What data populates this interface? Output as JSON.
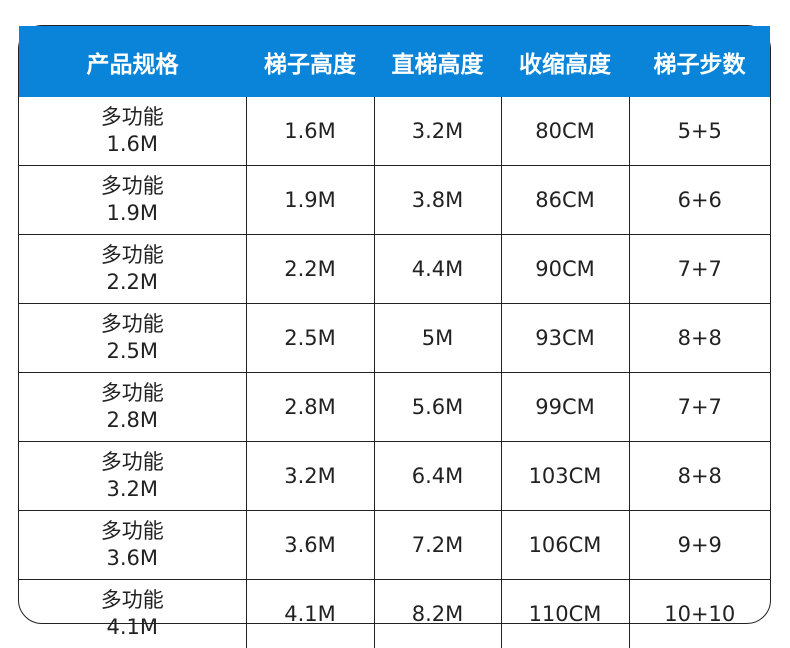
{
  "header_color": "#0a84d8",
  "headers": [
    "产品规格",
    "梯子高度",
    "直梯高度",
    "收缩高度",
    "梯子步数"
  ],
  "rows": [
    {
      "name": "多功能",
      "size": "1.6M",
      "ladder": "1.6M",
      "straight": "3.2M",
      "retracted": "80CM",
      "steps": "5+5"
    },
    {
      "name": "多功能",
      "size": "1.9M",
      "ladder": "1.9M",
      "straight": "3.8M",
      "retracted": "86CM",
      "steps": "6+6"
    },
    {
      "name": "多功能",
      "size": "2.2M",
      "ladder": "2.2M",
      "straight": "4.4M",
      "retracted": "90CM",
      "steps": "7+7"
    },
    {
      "name": "多功能",
      "size": "2.5M",
      "ladder": "2.5M",
      "straight": "5M",
      "retracted": "93CM",
      "steps": "8+8"
    },
    {
      "name": "多功能",
      "size": "2.8M",
      "ladder": "2.8M",
      "straight": "5.6M",
      "retracted": "99CM",
      "steps": "7+7"
    },
    {
      "name": "多功能",
      "size": "3.2M",
      "ladder": "3.2M",
      "straight": "6.4M",
      "retracted": "103CM",
      "steps": "8+8"
    },
    {
      "name": "多功能",
      "size": "3.6M",
      "ladder": "3.6M",
      "straight": "7.2M",
      "retracted": "106CM",
      "steps": "9+9"
    },
    {
      "name": "多功能",
      "size": "4.1M",
      "ladder": "4.1M",
      "straight": "8.2M",
      "retracted": "110CM",
      "steps": "10+10"
    }
  ]
}
